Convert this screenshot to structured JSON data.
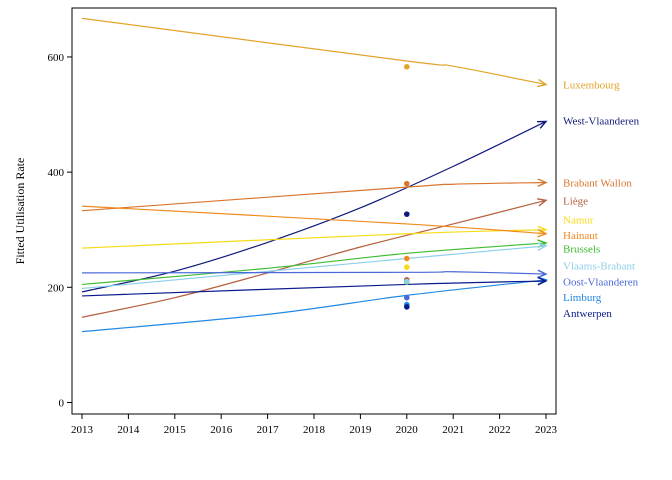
{
  "chart_data": {
    "type": "line",
    "title": "",
    "xlabel": "",
    "ylabel": "Fitted Utilisation Rate",
    "xlim": [
      2013,
      2023
    ],
    "ylim": [
      -20,
      685
    ],
    "x_ticks": [
      2013,
      2014,
      2015,
      2016,
      2017,
      2018,
      2019,
      2020,
      2021,
      2022,
      2023
    ],
    "y_ticks": [
      0,
      200,
      400,
      600
    ],
    "grid": false,
    "legend": "right (labels at line ends)",
    "series": [
      {
        "name": "Luxembourg",
        "color": "#E2A32A",
        "x": [
          2013,
          2020,
          2021,
          2023
        ],
        "y": [
          667,
          593,
          584,
          552
        ],
        "point": {
          "x": 2020,
          "y": 583
        },
        "label_y": 552
      },
      {
        "name": "West-Vlaanderen",
        "color": "#101A7A",
        "x": [
          2013,
          2015,
          2017,
          2019,
          2021,
          2023
        ],
        "y": [
          192,
          228,
          278,
          338,
          410,
          488
        ],
        "point": {
          "x": 2020,
          "y": 327
        },
        "label_y": 490
      },
      {
        "name": "Brabant Wallon",
        "color": "#D8762F",
        "x": [
          2013,
          2020,
          2021,
          2023
        ],
        "y": [
          333,
          374,
          379,
          382
        ],
        "point": {
          "x": 2020,
          "y": 380
        },
        "label_y": 382
      },
      {
        "name": "Liège",
        "color": "#B5603E",
        "x": [
          2013,
          2015,
          2017,
          2019,
          2021,
          2023
        ],
        "y": [
          148,
          182,
          225,
          270,
          310,
          351
        ],
        "point": {
          "x": 2020,
          "y": 213
        },
        "label_y": 351
      },
      {
        "name": "Namur",
        "color": "#F7DB1A",
        "x": [
          2013,
          2020,
          2023
        ],
        "y": [
          268,
          293,
          300
        ],
        "point": {
          "x": 2020,
          "y": 235
        },
        "label_y": 318
      },
      {
        "name": "Hainaut",
        "color": "#EF8A1E",
        "x": [
          2013,
          2020,
          2023
        ],
        "y": [
          341,
          310,
          293
        ],
        "point": {
          "x": 2020,
          "y": 250
        },
        "label_y": 291
      },
      {
        "name": "Brussels",
        "color": "#3DBB2F",
        "x": [
          2013,
          2017,
          2020,
          2023
        ],
        "y": [
          205,
          233,
          259,
          277
        ],
        "point": {
          "x": 2020,
          "y": 209
        },
        "label_y": 267
      },
      {
        "name": "Vlaams-Brabant",
        "color": "#8ECFEA",
        "x": [
          2013,
          2020,
          2023
        ],
        "y": [
          198,
          250,
          272
        ],
        "point": {
          "x": 2020,
          "y": 210
        },
        "label_y": 238
      },
      {
        "name": "Oost-Vlaanderen",
        "color": "#4A68D8",
        "x": [
          2013,
          2020,
          2021,
          2023
        ],
        "y": [
          225,
          226,
          227,
          223
        ],
        "point": {
          "x": 2020,
          "y": 182
        },
        "label_y": 210
      },
      {
        "name": "Limburg",
        "color": "#2288E2",
        "x": [
          2013,
          2017,
          2020,
          2023
        ],
        "y": [
          123,
          153,
          186,
          213
        ],
        "point": {
          "x": 2020,
          "y": 170
        },
        "label_y": 183
      },
      {
        "name": "Antwerpen",
        "color": "#0B1A8C",
        "x": [
          2013,
          2020,
          2023
        ],
        "y": [
          185,
          205,
          211
        ],
        "point": {
          "x": 2020,
          "y": 166
        },
        "label_y": 155
      }
    ]
  }
}
